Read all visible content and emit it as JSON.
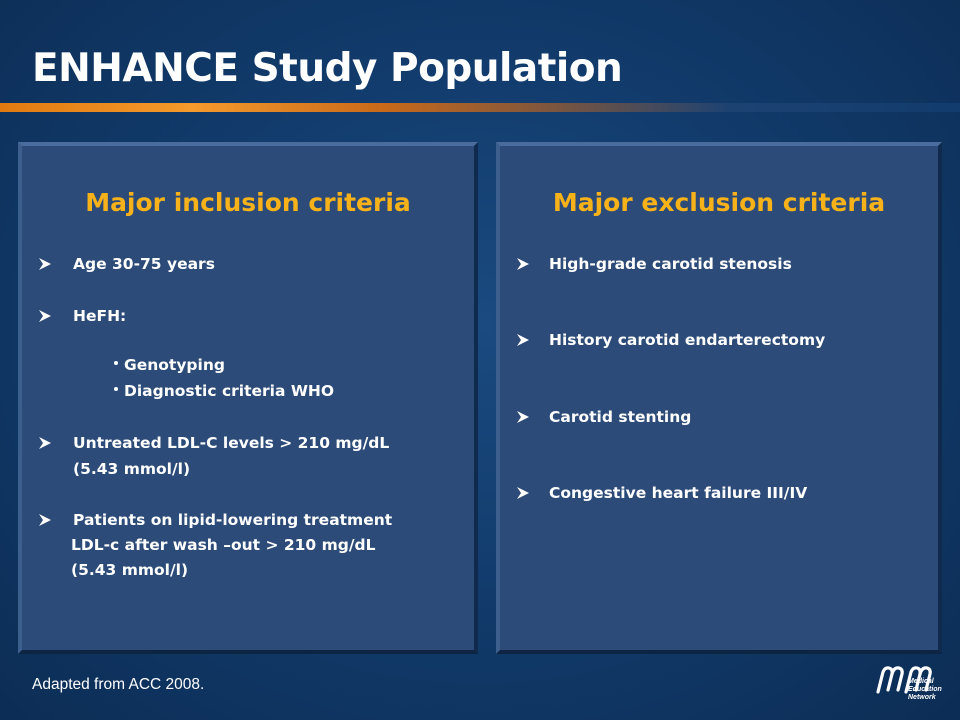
{
  "slide": {
    "title": "ENHANCE Study Population",
    "footnote": "Adapted from ACC 2008."
  },
  "inclusion": {
    "heading": "Major inclusion criteria",
    "age": "Age 30-75 years",
    "hefh": "HeFH:",
    "hefh_items": [
      "Genotyping",
      "Diagnostic  criteria WHO"
    ],
    "ldl_line1": "Untreated LDL-C levels > 210 mg/dL",
    "ldl_line2": "(5.43 mmol/l)",
    "lipid_line1": "Patients on lipid-lowering treatment",
    "lipid_line2": "LDL-c after wash –out > 210 mg/dL",
    "lipid_line3": "(5.43 mmol/l)"
  },
  "exclusion": {
    "heading": "Major exclusion criteria",
    "items": [
      "High-grade carotid stenosis",
      "History carotid endarterectomy",
      "Carotid stenting",
      "Congestive heart failure III/IV"
    ]
  },
  "logo": {
    "mark": "mmn",
    "lines": [
      "Medical",
      "Education",
      "Network"
    ]
  },
  "colors": {
    "background": "#123c6d",
    "panel": "#2c4b78",
    "heading": "#f7b21a",
    "rule_orange": "#f59a2c"
  }
}
